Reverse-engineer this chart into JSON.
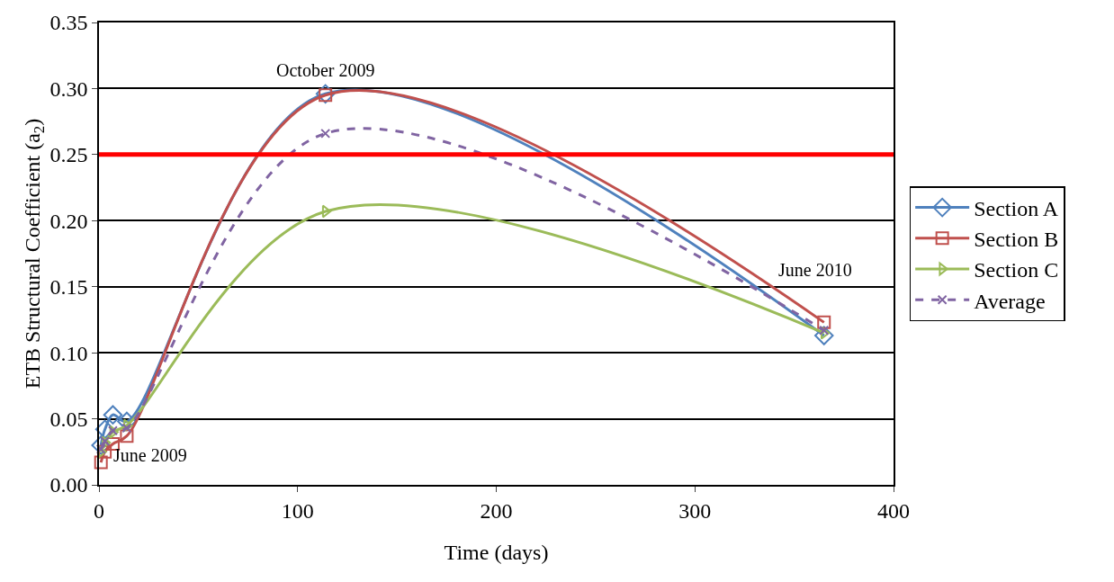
{
  "chart_data": {
    "type": "line",
    "xlabel": "Time (days)",
    "ylabel": "ETB Structural Coefficient (a$_{2}$)",
    "x": [
      1,
      3,
      7,
      14,
      114,
      365
    ],
    "series": [
      {
        "name": "Section A",
        "color": "#4f81bd",
        "marker": "diamond",
        "line_style": "solid",
        "values": [
          0.03,
          0.042,
          0.053,
          0.048,
          0.296,
          0.113
        ]
      },
      {
        "name": "Section B",
        "color": "#c0504d",
        "marker": "square",
        "line_style": "solid",
        "values": [
          0.017,
          0.025,
          0.031,
          0.037,
          0.295,
          0.123
        ]
      },
      {
        "name": "Section C",
        "color": "#9bbb59",
        "marker": "triangle",
        "line_style": "solid",
        "values": [
          0.025,
          0.032,
          0.04,
          0.045,
          0.207,
          0.115
        ]
      },
      {
        "name": "Average",
        "color": "#8064a2",
        "marker": "cross",
        "line_style": "dashed",
        "values": [
          0.027,
          0.033,
          0.041,
          0.043,
          0.266,
          0.117
        ]
      }
    ],
    "xlim": [
      0,
      400
    ],
    "xticks": [
      0,
      100,
      200,
      300,
      400
    ],
    "ylim": [
      0,
      0.35
    ],
    "yticks": [
      {
        "value": 0,
        "label": "0.00"
      },
      {
        "value": 0.05,
        "label": "0.05"
      },
      {
        "value": 0.1,
        "label": "0.10"
      },
      {
        "value": 0.15,
        "label": "0.15"
      },
      {
        "value": 0.2,
        "label": "0.20"
      },
      {
        "value": 0.25,
        "label": "0.25"
      },
      {
        "value": 0.3,
        "label": "0.30"
      },
      {
        "value": 0.35,
        "label": "0.35"
      }
    ],
    "grid": "y",
    "legend": "right",
    "ref_lines": [
      {
        "axis": "y",
        "value": 0.25,
        "color": "#ff0000"
      }
    ],
    "annotations": [
      {
        "text": "June 2009",
        "x": 1,
        "y": 0.017
      },
      {
        "text": "October 2009",
        "x": 114,
        "y": 0.296
      },
      {
        "text": "June 2010",
        "x": 365,
        "y": 0.123
      }
    ]
  }
}
